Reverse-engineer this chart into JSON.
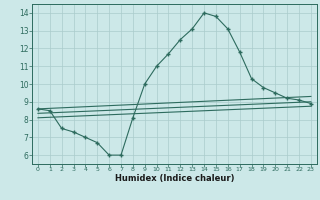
{
  "title": "",
  "xlabel": "Humidex (Indice chaleur)",
  "ylabel": "",
  "bg_color": "#cce8e8",
  "line_color": "#2d6b5e",
  "grid_color": "#aacccc",
  "xlim": [
    -0.5,
    23.5
  ],
  "ylim": [
    5.5,
    14.5
  ],
  "xticks": [
    0,
    1,
    2,
    3,
    4,
    5,
    6,
    7,
    8,
    9,
    10,
    11,
    12,
    13,
    14,
    15,
    16,
    17,
    18,
    19,
    20,
    21,
    22,
    23
  ],
  "yticks": [
    6,
    7,
    8,
    9,
    10,
    11,
    12,
    13,
    14
  ],
  "curve1_x": [
    0,
    1,
    2,
    3,
    4,
    5,
    6,
    7,
    8,
    9,
    10,
    11,
    12,
    13,
    14,
    15,
    16,
    17,
    18,
    19,
    20,
    21,
    22,
    23
  ],
  "curve1_y": [
    8.6,
    8.5,
    7.5,
    7.3,
    7.0,
    6.7,
    6.0,
    6.0,
    8.1,
    10.0,
    11.0,
    11.7,
    12.5,
    13.1,
    14.0,
    13.8,
    13.1,
    11.8,
    10.3,
    9.8,
    9.5,
    9.2,
    9.1,
    8.9
  ],
  "line2_x": [
    0,
    23
  ],
  "line2_y": [
    8.6,
    9.3
  ],
  "line3_x": [
    0,
    23
  ],
  "line3_y": [
    8.35,
    9.0
  ],
  "line4_x": [
    0,
    23
  ],
  "line4_y": [
    8.1,
    8.75
  ],
  "marker": "+",
  "markersize": 3,
  "linewidth": 0.8
}
